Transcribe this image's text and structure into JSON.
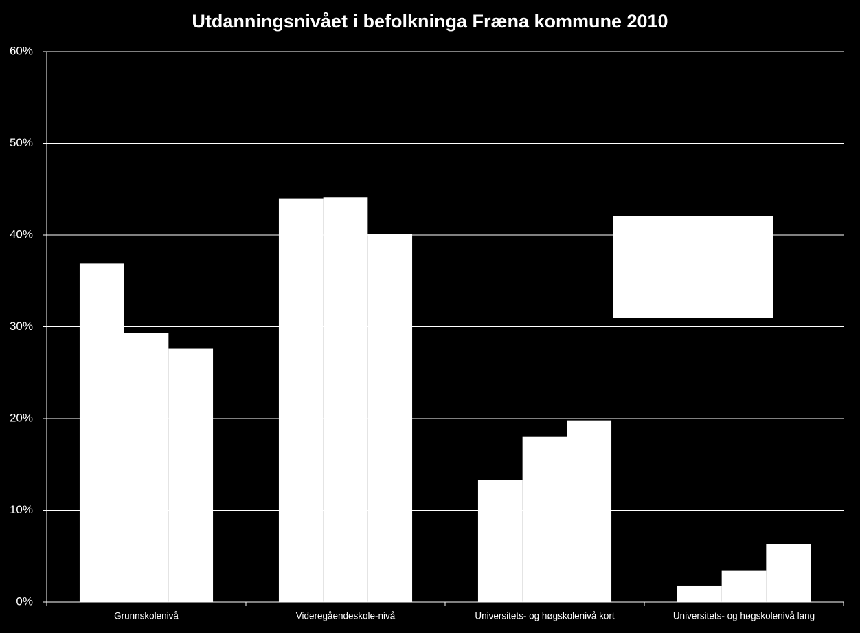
{
  "chart_data": {
    "type": "bar",
    "title": "Utdanningsnivået i befolkninga Fræna kommune 2010",
    "categories": [
      "Grunnskolenivå",
      "Videregåendeskole-nivå",
      "Universitets- og høgskolenivå kort",
      "Universitets- og høgskolenivå lang"
    ],
    "series": [
      {
        "color": "#ffffff",
        "values": [
          36.9,
          44.0,
          13.3,
          1.8
        ]
      },
      {
        "color": "#ffffff",
        "values": [
          29.3,
          44.1,
          18.0,
          3.4
        ]
      },
      {
        "color": "#ffffff",
        "values": [
          27.6,
          40.1,
          19.8,
          6.3
        ]
      }
    ],
    "ylim": [
      0,
      60
    ],
    "yticks": [
      {
        "value": 0,
        "label": "0%"
      },
      {
        "value": 10,
        "label": "10%"
      },
      {
        "value": 20,
        "label": "20%"
      },
      {
        "value": 30,
        "label": "30%"
      },
      {
        "value": 40,
        "label": "40%"
      },
      {
        "value": 50,
        "label": "50%"
      },
      {
        "value": 60,
        "label": "60%"
      }
    ],
    "grid": true
  }
}
